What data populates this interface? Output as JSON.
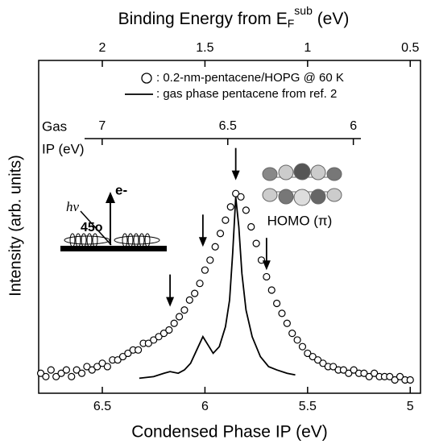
{
  "chart_data": {
    "type": "scatter",
    "title_parts": [
      "Binding Energy from E",
      "F",
      "sub",
      " (eV)"
    ],
    "x_label": "Condensed Phase IP (eV)",
    "y_label": "Intensity (arb. units)",
    "x3_label": [
      "Gas",
      "IP (eV)"
    ],
    "xlim": [
      6.81,
      4.95
    ],
    "xticks": [
      6.5,
      6,
      5.5,
      5
    ],
    "x2lim": [
      2.31,
      0.45
    ],
    "x2ticks": [
      2,
      1.5,
      1,
      0.5
    ],
    "x3lim": [
      7.07,
      5.97
    ],
    "x3ticks": [
      7,
      6.5,
      6
    ],
    "ylim": [
      0,
      1
    ],
    "series": [
      {
        "name": ": 0.2-nm-pentacene/HOPG @ 60 K",
        "style": "markers",
        "color": "#000000",
        "x": [
          6.8,
          6.775,
          6.75,
          6.725,
          6.7,
          6.675,
          6.65,
          6.625,
          6.6,
          6.575,
          6.55,
          6.525,
          6.5,
          6.475,
          6.45,
          6.425,
          6.4,
          6.375,
          6.35,
          6.325,
          6.3,
          6.275,
          6.25,
          6.225,
          6.2,
          6.175,
          6.15,
          6.125,
          6.1,
          6.075,
          6.05,
          6.025,
          6.0,
          5.975,
          5.95,
          5.925,
          5.9,
          5.875,
          5.85,
          5.825,
          5.8,
          5.775,
          5.75,
          5.725,
          5.7,
          5.675,
          5.65,
          5.625,
          5.6,
          5.575,
          5.55,
          5.525,
          5.5,
          5.475,
          5.45,
          5.425,
          5.4,
          5.375,
          5.35,
          5.325,
          5.3,
          5.275,
          5.25,
          5.225,
          5.2,
          5.175,
          5.15,
          5.125,
          5.1,
          5.075,
          5.05,
          5.025,
          5.0
        ],
        "values": [
          0.06,
          0.05,
          0.07,
          0.05,
          0.06,
          0.07,
          0.05,
          0.07,
          0.06,
          0.08,
          0.07,
          0.08,
          0.09,
          0.08,
          0.1,
          0.1,
          0.11,
          0.12,
          0.13,
          0.13,
          0.15,
          0.15,
          0.16,
          0.17,
          0.18,
          0.19,
          0.21,
          0.23,
          0.25,
          0.28,
          0.3,
          0.33,
          0.37,
          0.4,
          0.44,
          0.48,
          0.52,
          0.56,
          0.6,
          0.59,
          0.55,
          0.5,
          0.45,
          0.4,
          0.35,
          0.31,
          0.27,
          0.24,
          0.21,
          0.18,
          0.16,
          0.14,
          0.12,
          0.11,
          0.1,
          0.09,
          0.08,
          0.08,
          0.07,
          0.07,
          0.06,
          0.07,
          0.06,
          0.06,
          0.05,
          0.06,
          0.05,
          0.05,
          0.05,
          0.04,
          0.05,
          0.04,
          0.04
        ]
      },
      {
        "name": ": gas phase pentacene from ref. 2",
        "style": "line",
        "color": "#000000",
        "x": [
          6.32,
          6.25,
          6.2,
          6.17,
          6.13,
          6.1,
          6.07,
          6.04,
          6.01,
          5.99,
          5.96,
          5.93,
          5.9,
          5.88,
          5.865,
          5.85,
          5.835,
          5.82,
          5.8,
          5.77,
          5.73,
          5.69,
          5.65,
          5.6,
          5.56
        ],
        "values": [
          0.045,
          0.05,
          0.06,
          0.065,
          0.06,
          0.07,
          0.09,
          0.13,
          0.17,
          0.15,
          0.12,
          0.14,
          0.2,
          0.28,
          0.42,
          0.59,
          0.5,
          0.36,
          0.25,
          0.17,
          0.11,
          0.08,
          0.07,
          0.06,
          0.055
        ]
      }
    ],
    "arrows": [
      {
        "x": 6.17,
        "y": 0.26
      },
      {
        "x": 6.01,
        "y": 0.44
      },
      {
        "x": 5.85,
        "y": 0.64
      },
      {
        "x": 5.7,
        "y": 0.37
      }
    ],
    "inset": {
      "photon": "hν",
      "angle": "45o",
      "electron": "e-",
      "orbital": "HOMO (π)"
    }
  }
}
